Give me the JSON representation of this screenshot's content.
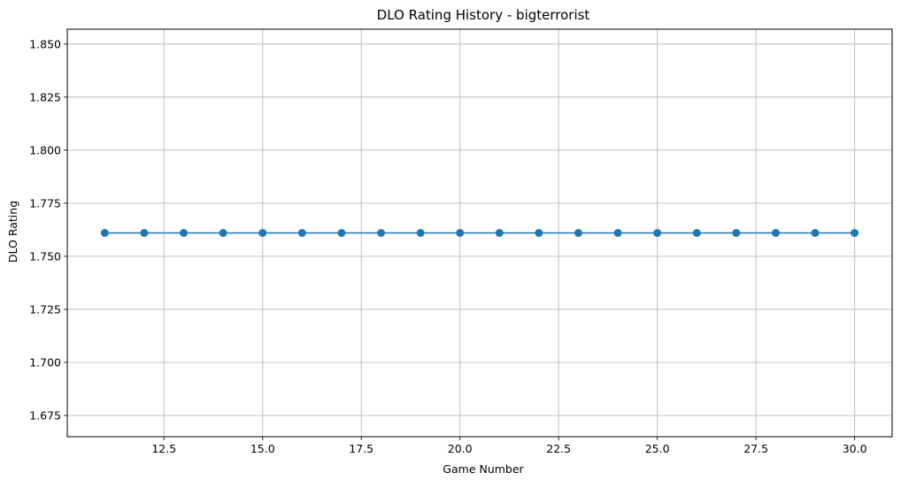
{
  "chart_data": {
    "type": "line",
    "title": "DLO Rating History - bigterrorist",
    "xlabel": "Game Number",
    "ylabel": "DLO Rating",
    "x": [
      11,
      12,
      13,
      14,
      15,
      16,
      17,
      18,
      19,
      20,
      21,
      22,
      23,
      24,
      25,
      26,
      27,
      28,
      29,
      30
    ],
    "series": [
      {
        "values": [
          1.761,
          1.761,
          1.761,
          1.761,
          1.761,
          1.761,
          1.761,
          1.761,
          1.761,
          1.761,
          1.761,
          1.761,
          1.761,
          1.761,
          1.761,
          1.761,
          1.761,
          1.761,
          1.761,
          1.761
        ],
        "color": "#1f77b4",
        "marker": "circle"
      }
    ],
    "xlim": [
      10.05,
      30.95
    ],
    "ylim": [
      1.665,
      1.857
    ],
    "xticks": [
      12.5,
      15.0,
      17.5,
      20.0,
      22.5,
      25.0,
      27.5,
      30.0
    ],
    "xtick_labels": [
      "12.5",
      "15.0",
      "17.5",
      "20.0",
      "22.5",
      "25.0",
      "27.5",
      "30.0"
    ],
    "yticks": [
      1.675,
      1.7,
      1.725,
      1.75,
      1.775,
      1.8,
      1.825,
      1.85
    ],
    "ytick_labels": [
      "1.675",
      "1.700",
      "1.725",
      "1.750",
      "1.775",
      "1.800",
      "1.825",
      "1.850"
    ],
    "grid": true,
    "colors": {
      "line": "#1f77b4",
      "grid": "#b0b0b0",
      "axes": "#000000"
    }
  }
}
